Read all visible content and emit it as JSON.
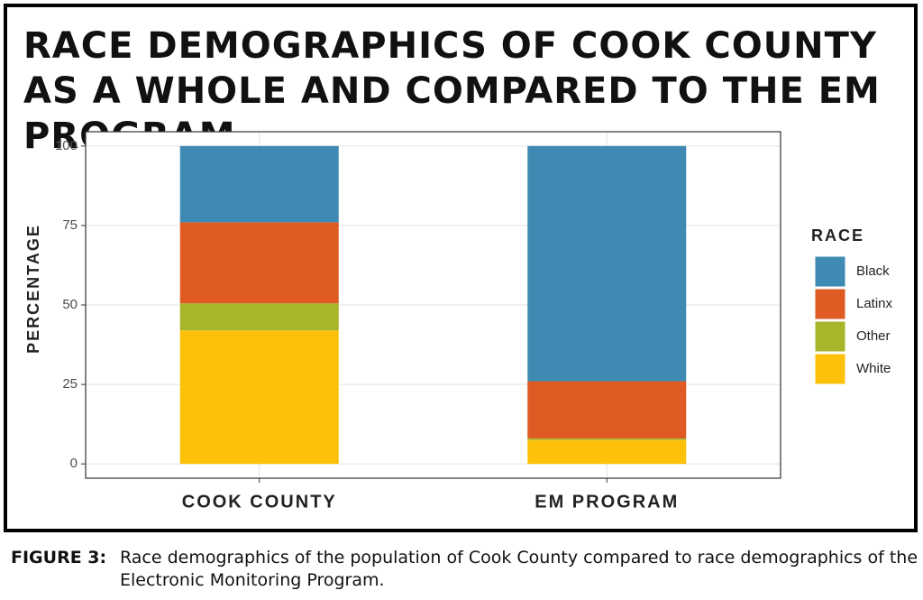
{
  "chart_data": {
    "type": "stacked_bar",
    "title": "RACE DEMOGRAPHICS OF COOK COUNTY AS A WHOLE AND COMPARED TO THE EM PROGRAM",
    "y_label": "PERCENTAGE",
    "legend_title": "RACE",
    "legend": "right",
    "categories": [
      "COOK COUNTY",
      "EM PROGRAM"
    ],
    "series": [
      {
        "name": "Black",
        "color": "#3f8ab3",
        "values": [
          24,
          74
        ]
      },
      {
        "name": "Latinx",
        "color": "#e05a24",
        "values": [
          25.5,
          18
        ]
      },
      {
        "name": "Other",
        "color": "#a6b52a",
        "values": [
          8.5,
          0.5
        ]
      },
      {
        "name": "White",
        "color": "#fdc10a",
        "values": [
          42,
          7.5
        ]
      }
    ],
    "ylim": [
      -4.5,
      104.5
    ],
    "yticks": [
      0,
      25,
      50,
      75,
      100
    ],
    "grid": true
  },
  "caption": {
    "label": "FIGURE 3:",
    "text": "Race demographics of the population of Cook County compared to race demographics of the Electronic Monitoring Program."
  }
}
